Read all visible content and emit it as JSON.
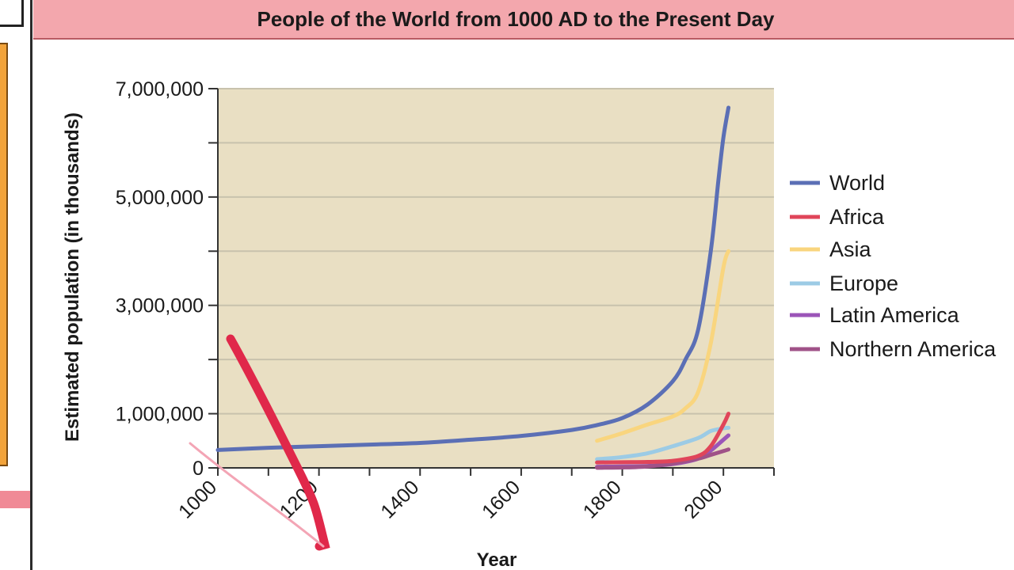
{
  "chart_data": {
    "type": "line",
    "title": "People of the World from 1000 AD to the Present Day",
    "xlabel": "Year",
    "ylabel": "Estimated population (in thousands)",
    "xlim": [
      1000,
      2100
    ],
    "ylim": [
      0,
      7000000
    ],
    "x_ticks": [
      1000,
      1200,
      1400,
      1600,
      1800,
      2000
    ],
    "y_ticks": [
      0,
      1000000,
      3000000,
      5000000,
      7000000
    ],
    "x_tick_labels": [
      "1000",
      "1200",
      "1400",
      "1600",
      "1800",
      "2000"
    ],
    "y_tick_labels": [
      "0",
      "1,000,000",
      "3,000,000",
      "5,000,000",
      "7,000,000"
    ],
    "grid": true,
    "legend_position": "right",
    "series": [
      {
        "name": "World",
        "color": "#5b6fb5",
        "x": [
          1000,
          1100,
          1200,
          1300,
          1400,
          1500,
          1600,
          1700,
          1750,
          1800,
          1850,
          1900,
          1925,
          1950,
          1975,
          1990,
          2000,
          2010
        ],
        "y": [
          330000,
          370000,
          400000,
          430000,
          460000,
          520000,
          590000,
          700000,
          790000,
          920000,
          1170000,
          1600000,
          2000000,
          2550000,
          4000000,
          5300000,
          6100000,
          6650000
        ]
      },
      {
        "name": "Africa",
        "color": "#e0455a",
        "x": [
          1750,
          1800,
          1850,
          1900,
          1950,
          1975,
          2000,
          2010
        ],
        "y": [
          100000,
          105000,
          110000,
          130000,
          220000,
          400000,
          800000,
          1000000
        ]
      },
      {
        "name": "Asia",
        "color": "#f9d57e",
        "x": [
          1750,
          1800,
          1850,
          1900,
          1925,
          1950,
          1975,
          2000,
          2010
        ],
        "y": [
          500000,
          640000,
          800000,
          950000,
          1100000,
          1400000,
          2300000,
          3700000,
          4000000
        ]
      },
      {
        "name": "Europe",
        "color": "#9ccbe5",
        "x": [
          1750,
          1800,
          1850,
          1900,
          1950,
          1975,
          2000,
          2010
        ],
        "y": [
          160000,
          200000,
          270000,
          400000,
          550000,
          680000,
          730000,
          740000
        ]
      },
      {
        "name": "Latin America",
        "color": "#9b55b8",
        "x": [
          1750,
          1800,
          1850,
          1900,
          1950,
          1975,
          2000,
          2010
        ],
        "y": [
          20000,
          25000,
          35000,
          70000,
          170000,
          320000,
          520000,
          600000
        ]
      },
      {
        "name": "Northern America",
        "color": "#a05288",
        "x": [
          1750,
          1800,
          1850,
          1900,
          1950,
          1975,
          2000,
          2010
        ],
        "y": [
          2000,
          7000,
          26000,
          82000,
          170000,
          240000,
          310000,
          340000
        ]
      }
    ]
  }
}
